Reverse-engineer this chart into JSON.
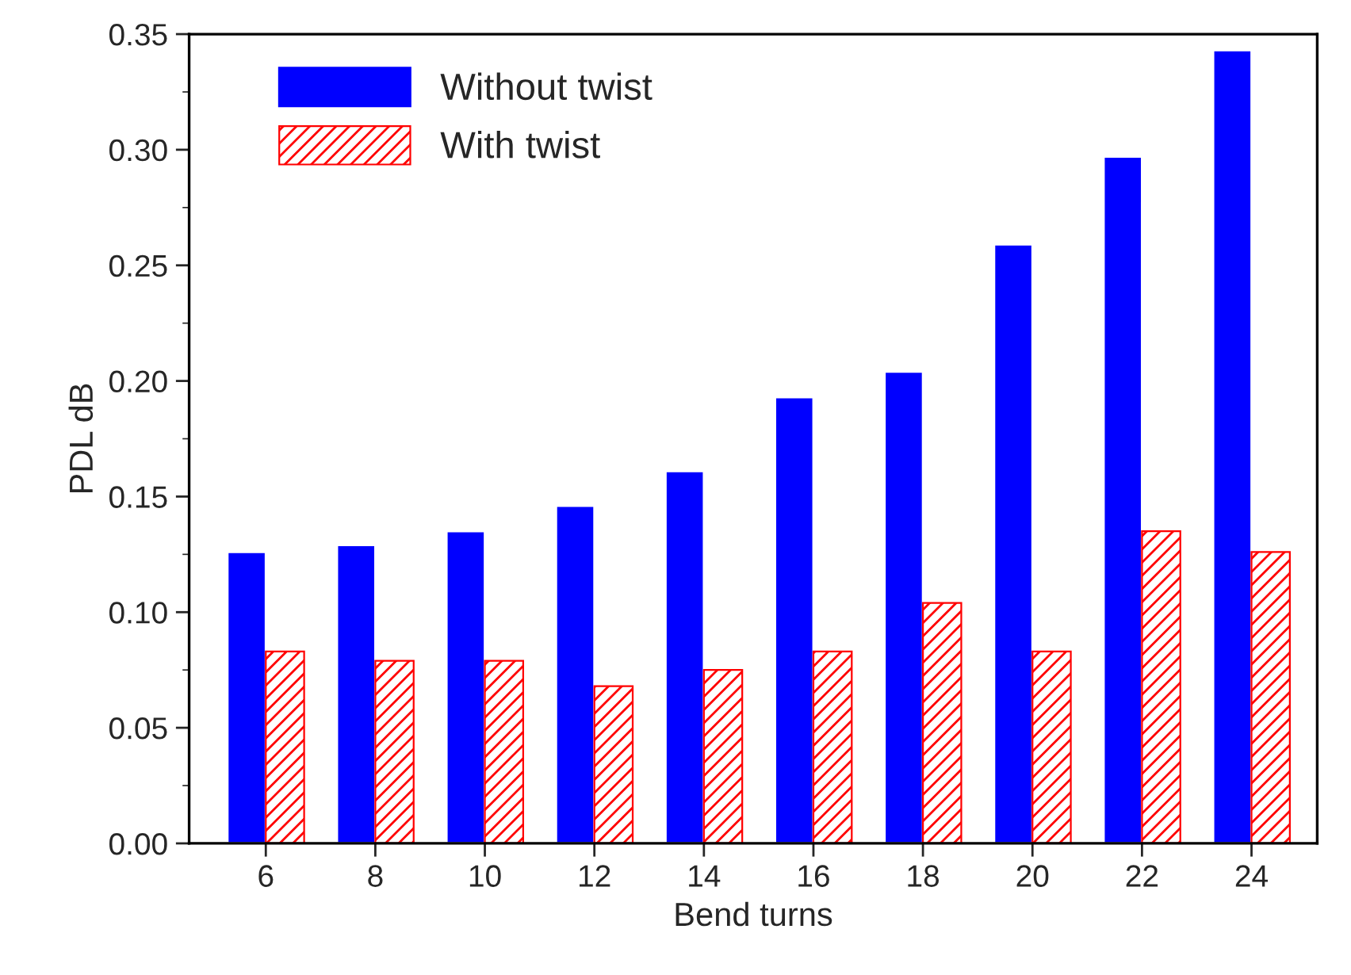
{
  "chart_data": {
    "type": "bar",
    "xlabel": "Bend turns",
    "ylabel": "PDL dB",
    "categories": [
      "6",
      "8",
      "10",
      "12",
      "14",
      "16",
      "18",
      "20",
      "22",
      "24"
    ],
    "series": [
      {
        "name": "Without twist",
        "color": "#0000ff",
        "values": [
          0.126,
          0.129,
          0.135,
          0.146,
          0.161,
          0.193,
          0.204,
          0.259,
          0.297,
          0.343
        ]
      },
      {
        "name": "With twist",
        "color": "#ff0000",
        "values": [
          0.083,
          0.079,
          0.079,
          0.068,
          0.075,
          0.083,
          0.104,
          0.083,
          0.135,
          0.126
        ]
      }
    ],
    "ylim": [
      0,
      0.35
    ],
    "yticks": [
      {
        "value": 0,
        "label": "0.00"
      },
      {
        "value": 0.05,
        "label": "0.05"
      },
      {
        "value": 0.1,
        "label": "0.10"
      },
      {
        "value": 0.15,
        "label": "0.15"
      },
      {
        "value": 0.2,
        "label": "0.20"
      },
      {
        "value": 0.25,
        "label": "0.25"
      },
      {
        "value": 0.3,
        "label": "0.30"
      },
      {
        "value": 0.35,
        "label": "0.35"
      }
    ],
    "grid": false,
    "legend": "top left"
  }
}
